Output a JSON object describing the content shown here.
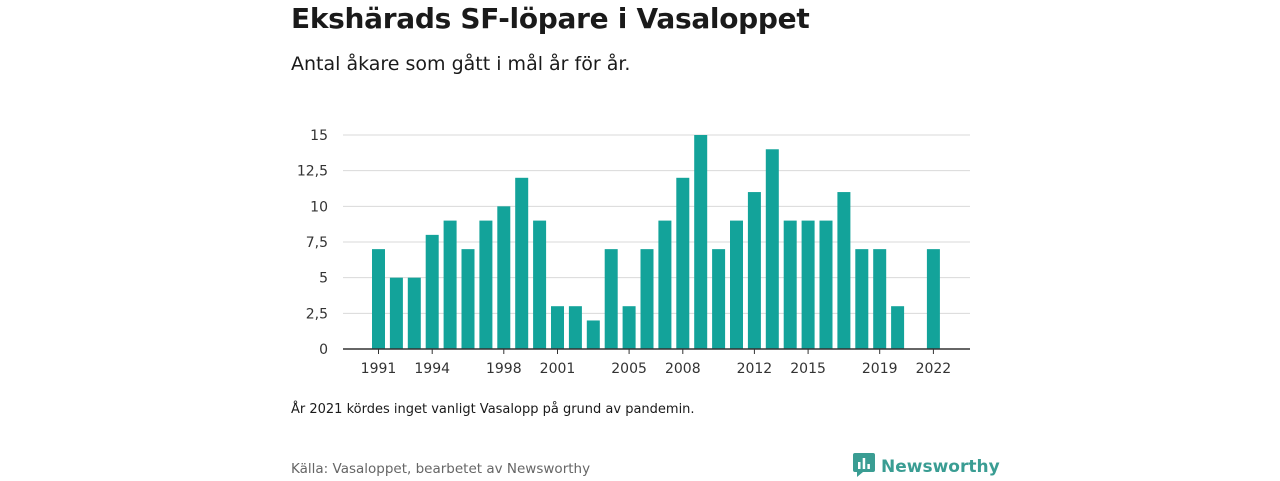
{
  "header": {
    "title": "Ekshärads SF-löpare i Vasaloppet",
    "subtitle": "Antal åkare som gått i mål år för år."
  },
  "footer": {
    "note": "År 2021 kördes inget vanligt Vasalopp på grund av pandemin.",
    "source": "Källa: Vasaloppet, bearbetet av Newsworthy",
    "brand": "Newsworthy",
    "logo_icon": "newsworthy-logo-icon",
    "brand_color": "#3a9d93"
  },
  "chart_data": {
    "type": "bar",
    "title": "Ekshärads SF-löpare i Vasaloppet",
    "subtitle": "Antal åkare som gått i mål år för år.",
    "xlabel": "",
    "ylabel": "",
    "ylim": [
      0,
      15
    ],
    "yticks": [
      0,
      2.5,
      5,
      7.5,
      10,
      12.5,
      15
    ],
    "ytick_labels": [
      "0",
      "2,5",
      "5",
      "7,5",
      "10",
      "12,5",
      "15"
    ],
    "xtick_labels": [
      "1991",
      "1994",
      "1998",
      "2001",
      "2005",
      "2008",
      "2012",
      "2015",
      "2019",
      "2022"
    ],
    "categories": [
      1991,
      1992,
      1993,
      1994,
      1995,
      1996,
      1997,
      1998,
      1999,
      2000,
      2001,
      2002,
      2003,
      2004,
      2005,
      2006,
      2007,
      2008,
      2009,
      2010,
      2011,
      2012,
      2013,
      2014,
      2015,
      2016,
      2017,
      2018,
      2019,
      2020,
      2021,
      2022
    ],
    "values": [
      7,
      5,
      5,
      8,
      9,
      7,
      9,
      10,
      12,
      9,
      3,
      3,
      2,
      7,
      3,
      7,
      9,
      12,
      15,
      7,
      9,
      11,
      14,
      9,
      9,
      9,
      11,
      7,
      7,
      3,
      0,
      7
    ],
    "bar_color": "#13a39a",
    "grid": true,
    "legend": "none"
  }
}
